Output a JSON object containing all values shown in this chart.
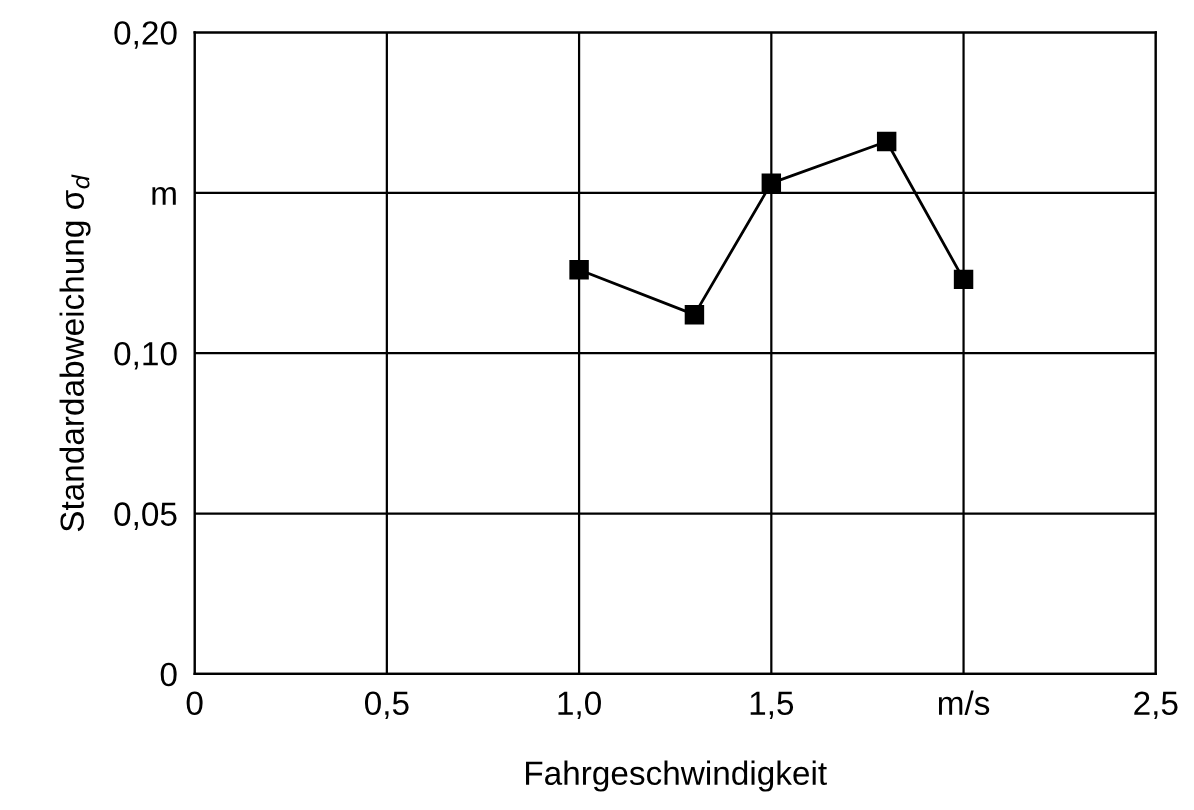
{
  "chart_data": {
    "type": "line",
    "xlabel": "Fahrgeschwindigkeit",
    "ylabel": "Standardabweichung σ$_{d}$",
    "x": [
      1.0,
      1.3,
      1.5,
      1.8,
      2.0
    ],
    "series": [
      {
        "color": "#000000",
        "values": [
          0.126,
          0.112,
          0.153,
          0.166,
          0.123
        ]
      }
    ],
    "xlim": [
      0,
      2.5
    ],
    "ylim": [
      0,
      0.2
    ],
    "xticks": [
      0,
      {
        "value": 0.5,
        "label": "0,5"
      },
      {
        "value": 1.0,
        "label": "1,0"
      },
      {
        "value": 1.5,
        "label": "1,5"
      },
      {
        "value": 2.0,
        "label": "m/s"
      },
      {
        "value": 2.5,
        "label": "2,5"
      }
    ],
    "yticks": [
      0,
      {
        "value": 0.05,
        "label": "0,05"
      },
      {
        "value": 0.1,
        "label": "0,10"
      },
      {
        "value": 0.15,
        "label": "m"
      },
      {
        "value": 0.2,
        "label": "0,20"
      }
    ],
    "grid": true,
    "marker": "square",
    "line_style": "solid"
  }
}
